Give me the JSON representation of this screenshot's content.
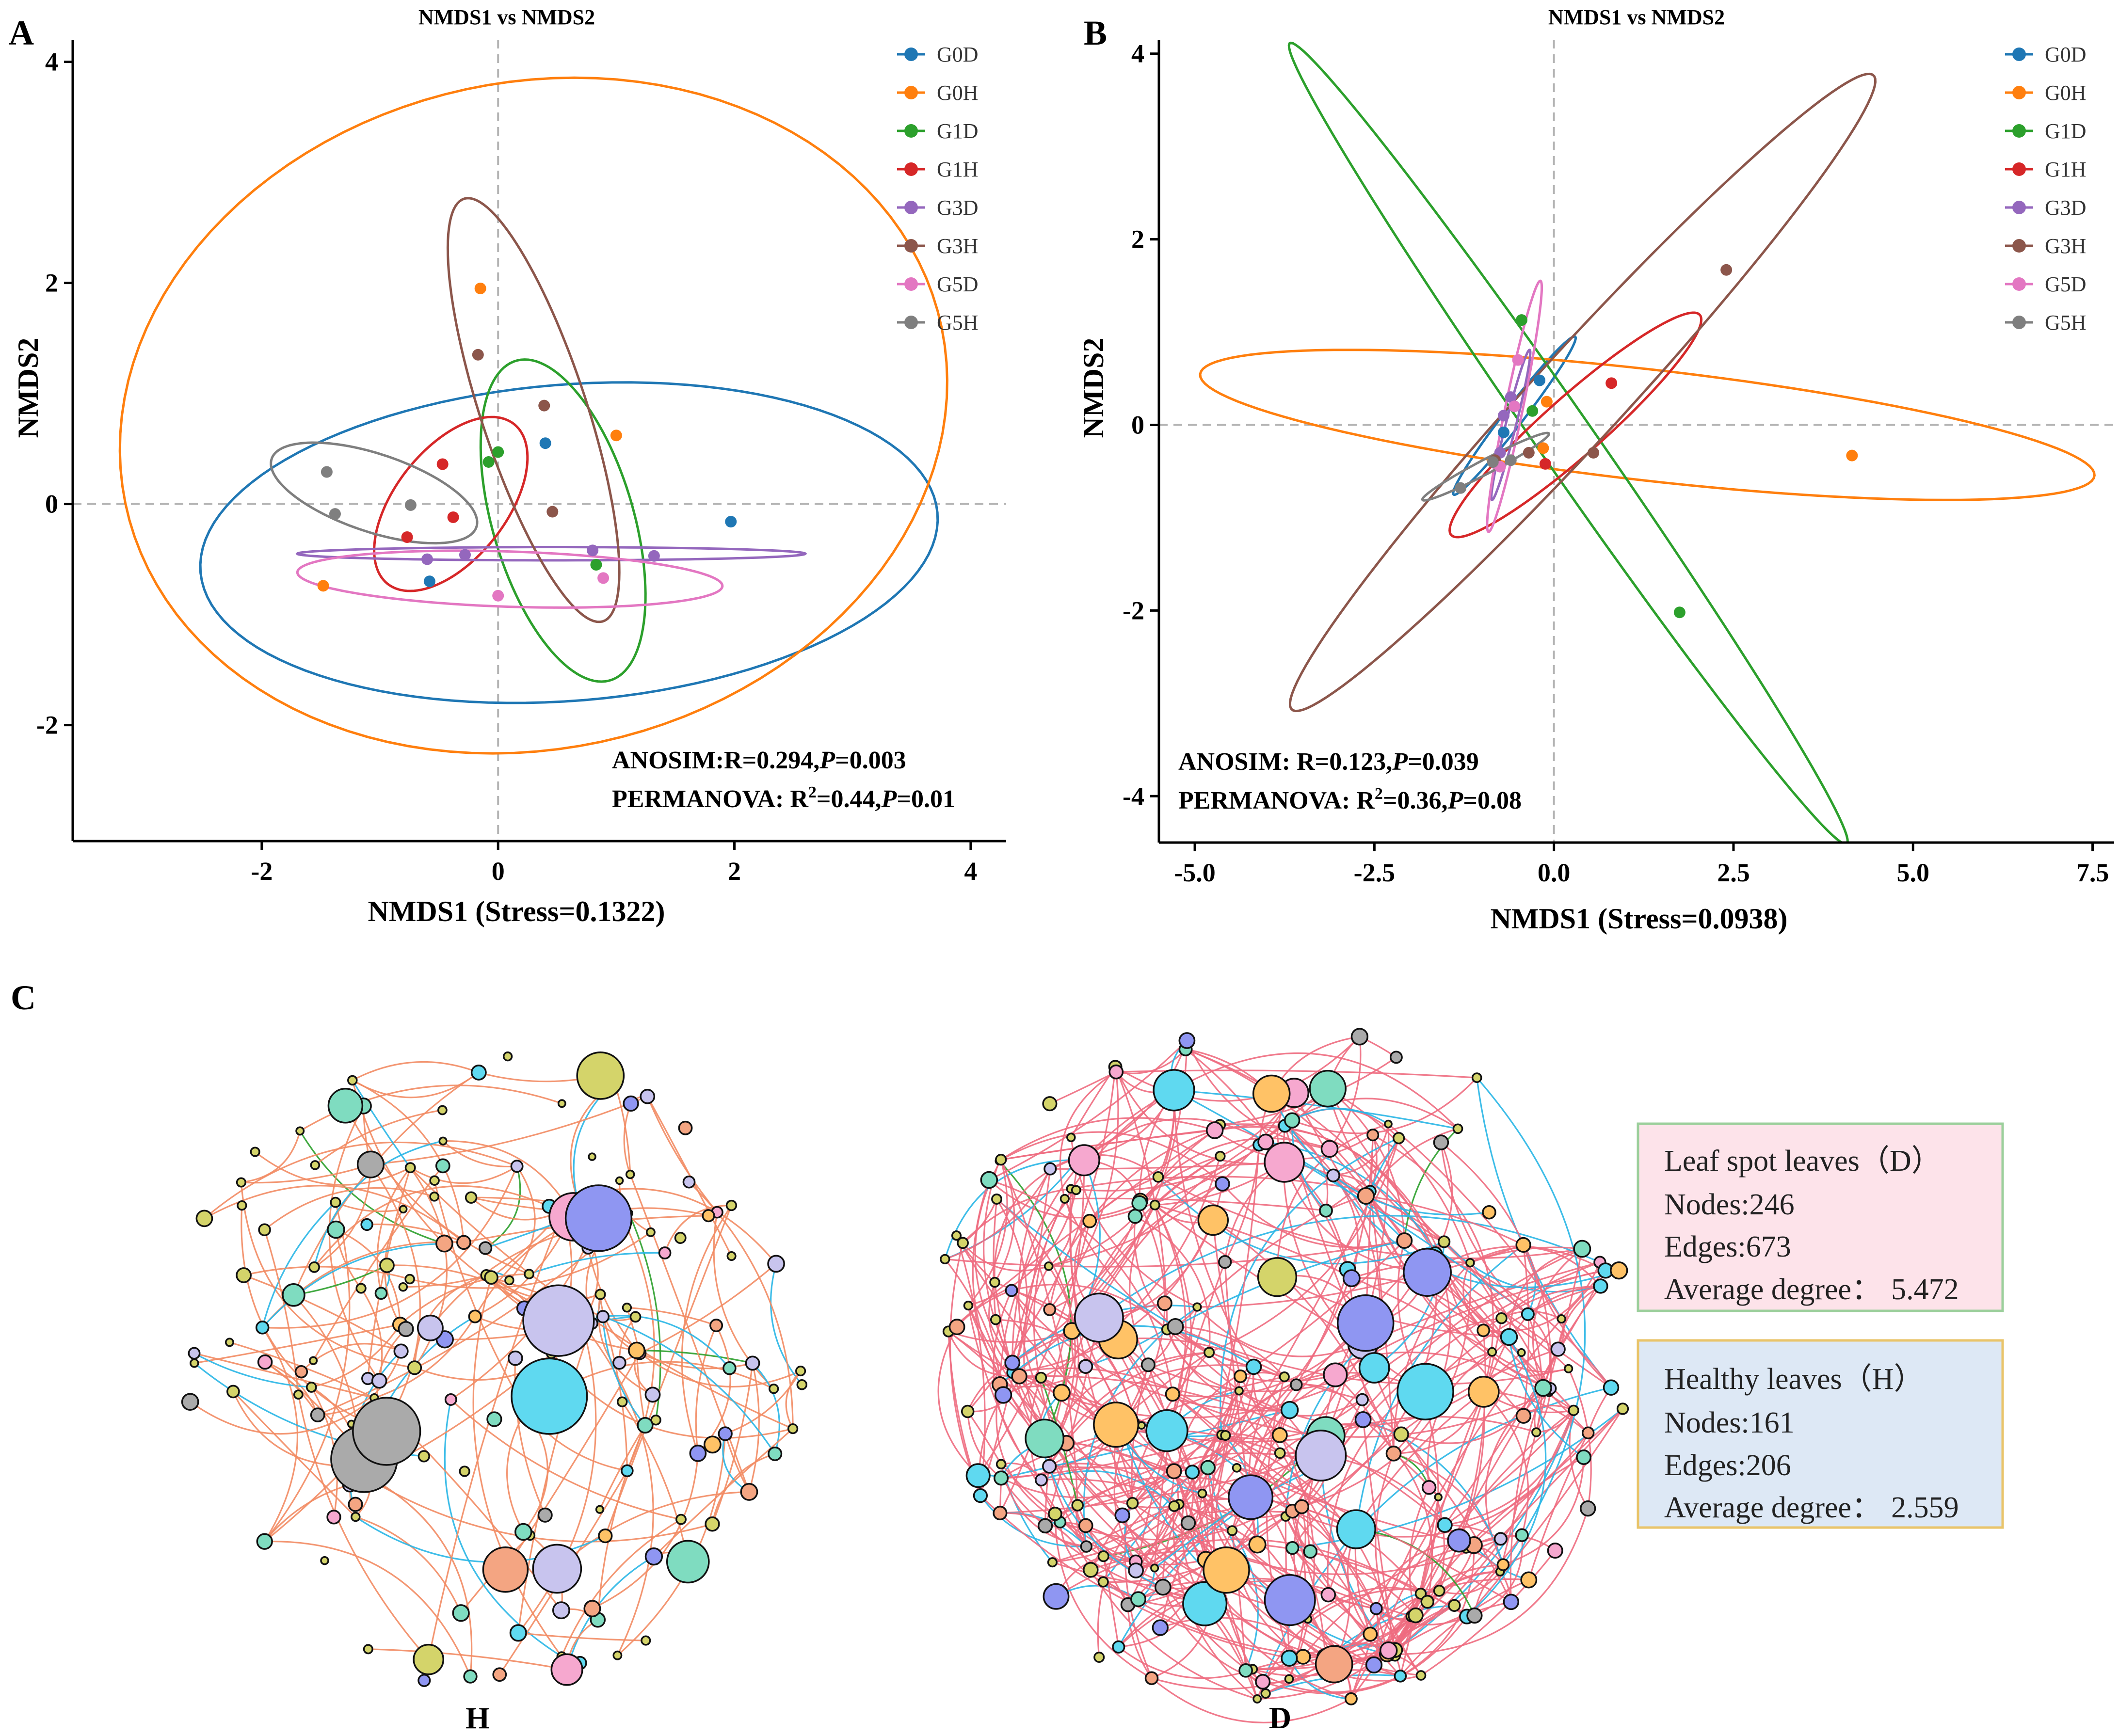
{
  "colors": {
    "G0D": "#1f77b4",
    "G0H": "#ff7f0e",
    "G1D": "#2ca02c",
    "G1H": "#d62728",
    "G3D": "#9467bd",
    "G3H": "#8c564b",
    "G5D": "#e377c2",
    "G5H": "#7f7f7f",
    "edge_pos_H": "#f28b63",
    "edge_pos_D": "#ee6b7f",
    "edge_neg": "#29b6e6",
    "edge_other": "#2ca02c",
    "box_D_fill": "#fde3ea",
    "box_D_border": "#9ccf9c",
    "box_H_fill": "#dde8f5",
    "box_H_border": "#e9c46a",
    "node_palette": [
      "#f4a582",
      "#7fdcc0",
      "#d4d46a",
      "#c8c4ee",
      "#f6a8cf",
      "#ffc266",
      "#5fd9f0",
      "#aaaaaa",
      "#8f96f2"
    ]
  },
  "chart_data": [
    {
      "panel": "A",
      "type": "scatter",
      "title": "NMDS1 vs NMDS2",
      "xlabel": "NMDS1 (Stress=0.1322)",
      "ylabel": "NMDS2",
      "xlim": [
        -3.6,
        4.3
      ],
      "ylim": [
        -3.05,
        4.2
      ],
      "xticks": [
        -2,
        0,
        2,
        4
      ],
      "yticks": [
        -2,
        0,
        2,
        4
      ],
      "legend": [
        "G0D",
        "G0H",
        "G1D",
        "G1H",
        "G3D",
        "G3H",
        "G5D",
        "G5H"
      ],
      "legend_position": "top-right",
      "series": [
        {
          "name": "G0D",
          "points": [
            [
              0.4,
              0.55
            ],
            [
              1.97,
              -0.16
            ],
            [
              -0.58,
              -0.7
            ]
          ]
        },
        {
          "name": "G0H",
          "points": [
            [
              -0.15,
              1.95
            ],
            [
              1.0,
              0.62
            ],
            [
              -1.48,
              -0.74
            ]
          ]
        },
        {
          "name": "G1D",
          "points": [
            [
              0.0,
              0.47
            ],
            [
              0.83,
              -0.55
            ],
            [
              -0.08,
              0.38
            ]
          ]
        },
        {
          "name": "G1H",
          "points": [
            [
              -0.47,
              0.36
            ],
            [
              -0.77,
              -0.3
            ],
            [
              -0.38,
              -0.12
            ]
          ]
        },
        {
          "name": "G3D",
          "points": [
            [
              -0.6,
              -0.5
            ],
            [
              -0.28,
              -0.46
            ],
            [
              0.8,
              -0.42
            ],
            [
              1.32,
              -0.47
            ]
          ]
        },
        {
          "name": "G3H",
          "points": [
            [
              -0.17,
              1.35
            ],
            [
              0.39,
              0.89
            ],
            [
              0.46,
              -0.07
            ]
          ]
        },
        {
          "name": "G5D",
          "points": [
            [
              0.0,
              -0.83
            ],
            [
              0.89,
              -0.67
            ]
          ]
        },
        {
          "name": "G5H",
          "points": [
            [
              -1.45,
              0.29
            ],
            [
              -1.38,
              -0.09
            ],
            [
              -0.74,
              -0.01
            ]
          ]
        }
      ],
      "ellipses": [
        {
          "name": "G0D",
          "cx": 0.6,
          "cy": -0.35,
          "rx": 3.13,
          "ry": 1.43,
          "angle": 5
        },
        {
          "name": "G0H",
          "cx": 0.3,
          "cy": 0.8,
          "rx": 3.55,
          "ry": 3.0,
          "angle": 18
        },
        {
          "name": "G1D",
          "cx": 0.55,
          "cy": -0.15,
          "rx": 0.6,
          "ry": 1.5,
          "angle": 15
        },
        {
          "name": "G1H",
          "cx": -0.4,
          "cy": 0.0,
          "rx": 0.48,
          "ry": 0.9,
          "angle": -35
        },
        {
          "name": "G3D",
          "cx": 0.45,
          "cy": -0.45,
          "rx": 2.15,
          "ry": 0.06,
          "angle": 0
        },
        {
          "name": "G3H",
          "cx": 0.3,
          "cy": 0.85,
          "rx": 0.45,
          "ry": 2.0,
          "angle": 17
        },
        {
          "name": "G5D",
          "cx": 0.1,
          "cy": -0.68,
          "rx": 1.8,
          "ry": 0.25,
          "angle": -2
        },
        {
          "name": "G5H",
          "cx": -1.05,
          "cy": 0.1,
          "rx": 0.92,
          "ry": 0.35,
          "angle": -20
        }
      ],
      "stats": [
        {
          "parts": [
            "ANOSIM:R=0.294,",
            "P",
            "=0.003"
          ]
        },
        {
          "parts": [
            "PERMANOVA: R",
            "2",
            "=0.44,",
            "P",
            "=0.01"
          ]
        }
      ]
    },
    {
      "panel": "B",
      "type": "scatter",
      "title": "NMDS1 vs NMDS2",
      "xlabel": "NMDS1 (Stress=0.0938)",
      "ylabel": "NMDS2",
      "xlim": [
        -5.5,
        7.8
      ],
      "ylim": [
        -4.5,
        4.15
      ],
      "xticks": [
        -5.0,
        -2.5,
        0.0,
        2.5,
        5.0,
        7.5
      ],
      "xtick_labels": [
        "-5.0",
        "-2.5",
        "0.0",
        "2.5",
        "5.0",
        "7.5"
      ],
      "yticks": [
        -4,
        -2,
        0,
        2,
        4
      ],
      "legend": [
        "G0D",
        "G0H",
        "G1D",
        "G1H",
        "G3D",
        "G3H",
        "G5D",
        "G5H"
      ],
      "legend_position": "top-right",
      "series": [
        {
          "name": "G0D",
          "points": [
            [
              -0.2,
              0.48
            ],
            [
              -0.7,
              -0.08
            ],
            [
              -0.55,
              0.2
            ]
          ]
        },
        {
          "name": "G0H",
          "points": [
            [
              -0.1,
              0.25
            ],
            [
              4.15,
              -0.33
            ],
            [
              -0.15,
              -0.25
            ]
          ]
        },
        {
          "name": "G1D",
          "points": [
            [
              -0.45,
              1.13
            ],
            [
              1.75,
              -2.02
            ],
            [
              -0.3,
              0.15
            ]
          ]
        },
        {
          "name": "G1H",
          "points": [
            [
              0.8,
              0.45
            ],
            [
              -0.12,
              -0.42
            ]
          ]
        },
        {
          "name": "G3D",
          "points": [
            [
              -0.6,
              0.3
            ],
            [
              -0.75,
              -0.3
            ],
            [
              -0.7,
              0.1
            ]
          ]
        },
        {
          "name": "G3H",
          "points": [
            [
              2.4,
              1.67
            ],
            [
              0.55,
              -0.3
            ],
            [
              -0.35,
              -0.3
            ],
            [
              -0.82,
              -0.38
            ]
          ]
        },
        {
          "name": "G5D",
          "points": [
            [
              -0.5,
              0.7
            ],
            [
              -0.55,
              0.2
            ],
            [
              -0.75,
              -0.45
            ]
          ]
        },
        {
          "name": "G5H",
          "points": [
            [
              -1.3,
              -0.68
            ],
            [
              -0.6,
              -0.38
            ],
            [
              -0.85,
              -0.4
            ]
          ]
        }
      ],
      "ellipses": [
        {
          "name": "G0D",
          "cx": -0.55,
          "cy": 0.1,
          "rx": 1.2,
          "ry": 0.12,
          "angle": 45
        },
        {
          "name": "G0H",
          "cx": 1.3,
          "cy": 0.0,
          "rx": 6.25,
          "ry": 0.6,
          "angle": -5
        },
        {
          "name": "G1D",
          "cx": 0.2,
          "cy": -0.2,
          "rx": 5.8,
          "ry": 0.35,
          "angle": -48
        },
        {
          "name": "G1H",
          "cx": 0.3,
          "cy": 0.0,
          "rx": 2.1,
          "ry": 0.35,
          "angle": 34
        },
        {
          "name": "G3D",
          "cx": -0.6,
          "cy": 0.0,
          "rx": 0.85,
          "ry": 0.07,
          "angle": 72
        },
        {
          "name": "G3H",
          "cx": 0.4,
          "cy": 0.35,
          "rx": 5.3,
          "ry": 0.55,
          "angle": 40
        },
        {
          "name": "G5D",
          "cx": -0.55,
          "cy": 0.2,
          "rx": 1.4,
          "ry": 0.12,
          "angle": 75
        },
        {
          "name": "G5H",
          "cx": -0.95,
          "cy": -0.45,
          "rx": 0.95,
          "ry": 0.08,
          "angle": 22
        }
      ],
      "stats": [
        {
          "parts": [
            "ANOSIM: R=0.123,",
            "P",
            "=0.039"
          ]
        },
        {
          "parts": [
            "PERMANOVA: R",
            "2",
            "=0.36,",
            "P",
            "=0.08"
          ]
        }
      ]
    }
  ],
  "panels": {
    "A": {
      "label": "A"
    },
    "B": {
      "label": "B"
    },
    "C": {
      "label": "C"
    }
  },
  "network": {
    "H": {
      "label": "H",
      "nodes": 161,
      "edges": 206
    },
    "D": {
      "label": "D",
      "nodes": 246,
      "edges": 673
    }
  },
  "info_boxes": {
    "D": {
      "title": "Leaf spot leaves（D）",
      "nodes": "Nodes:246",
      "edges": "Edges:673",
      "degree_label": "Average degree：",
      "degree_value": "5.472"
    },
    "H": {
      "title": "Healthy leaves（H）",
      "nodes": "Nodes:161",
      "edges": "Edges:206",
      "degree_label": "Average degree：",
      "degree_value": "2.559"
    }
  }
}
